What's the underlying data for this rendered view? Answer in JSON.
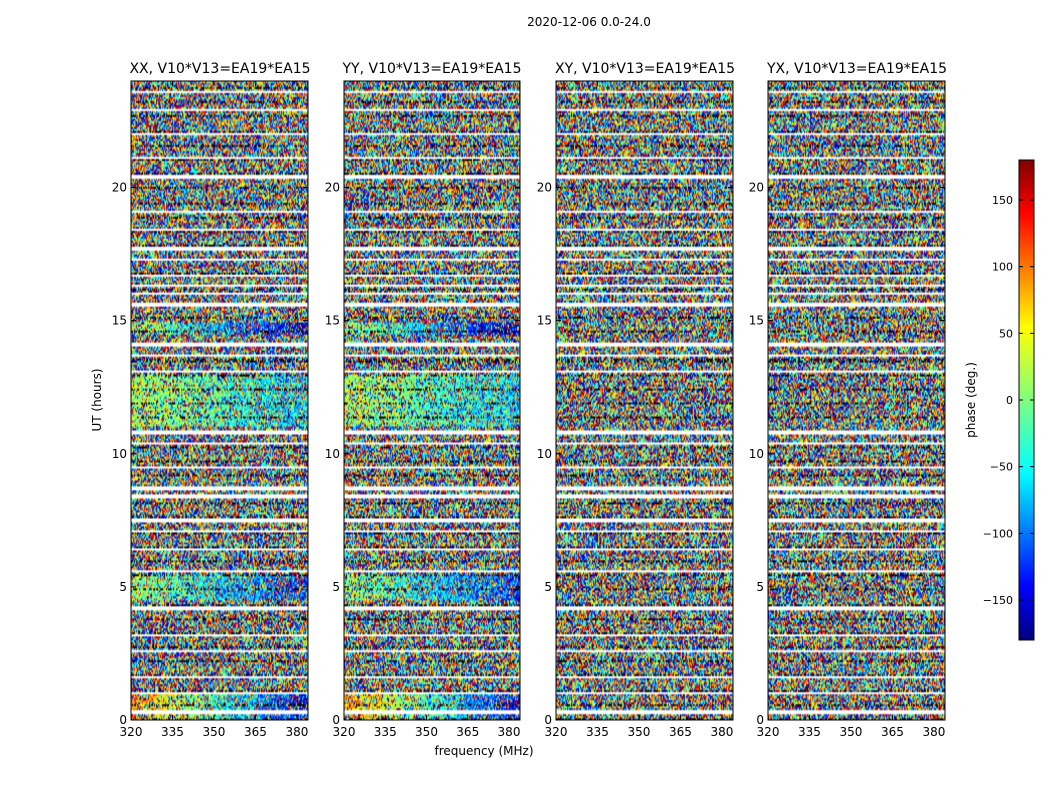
{
  "chart_data": {
    "type": "heatmap",
    "suptitle": "2020-12-06 0.0-24.0",
    "xlabel": "frequency (MHz)",
    "ylabel": "UT (hours)",
    "xlim": [
      320,
      384
    ],
    "ylim": [
      0,
      24
    ],
    "xticks": [
      320,
      335,
      350,
      365,
      380
    ],
    "yticks": [
      0,
      5,
      10,
      15,
      20
    ],
    "panels": [
      {
        "title": "XX, V10*V13=EA19*EA15",
        "pol": "XX"
      },
      {
        "title": "YY, V10*V13=EA19*EA15",
        "pol": "YY"
      },
      {
        "title": "XY, V10*V13=EA19*EA15",
        "pol": "XY"
      },
      {
        "title": "YX, V10*V13=EA19*EA15",
        "pol": "YX"
      }
    ],
    "colorbar": {
      "label": "phase (deg.)",
      "range": [
        -180,
        180
      ],
      "ticks": [
        150,
        100,
        50,
        0,
        -50,
        -100,
        -150
      ],
      "colormap": "jet"
    },
    "coherent_bands_hours": [
      {
        "pols": [
          "XX",
          "YY"
        ],
        "range": [
          11.0,
          13.0
        ],
        "phase_low_freq_deg": 20,
        "phase_high_freq_deg": -60
      },
      {
        "pols": [
          "XX",
          "YY"
        ],
        "range": [
          14.5,
          14.9
        ],
        "phase_low_freq_deg": 20,
        "phase_high_freq_deg": -170
      },
      {
        "pols": [
          "XX",
          "YY"
        ],
        "range": [
          4.5,
          5.5
        ],
        "phase_low_freq_deg": 10,
        "phase_high_freq_deg": -120
      },
      {
        "pols": [
          "XX",
          "YY"
        ],
        "range": [
          0.0,
          1.0
        ],
        "phase_low_freq_deg": 90,
        "phase_high_freq_deg": -150
      }
    ],
    "flagged_gaps_hours": [
      0.3,
      1.0,
      1.6,
      2.6,
      3.2,
      4.2,
      5.6,
      6.4,
      7.1,
      7.5,
      8.4,
      8.7,
      9.5,
      10.4,
      10.8,
      13.1,
      13.7,
      14.1,
      15.6,
      16.0,
      16.3,
      16.7,
      17.3,
      17.7,
      18.4,
      19.1,
      20.4,
      21.1,
      22.0,
      22.9,
      23.6
    ],
    "note": "Phase values are otherwise noisy (uniformly distributed between -180 and 180 deg)."
  }
}
